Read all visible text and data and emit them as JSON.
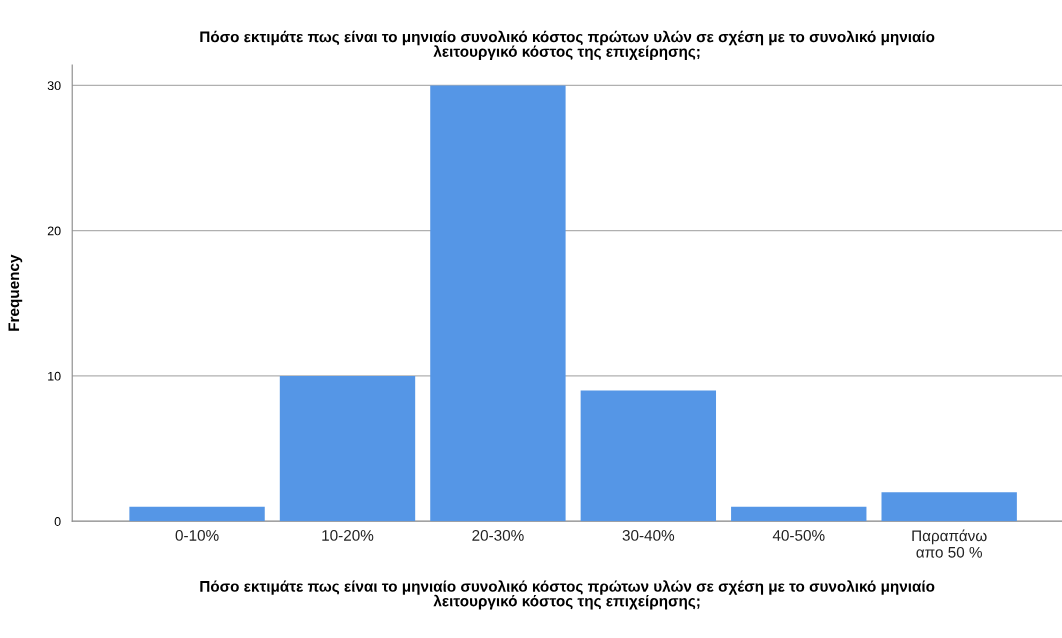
{
  "chart_data": {
    "type": "bar",
    "title": "Πόσο εκτιμάτε πως είναι το μηνιαίο συνολικό κόστος πρώτων υλών σε σχέση με το συνολικό μηνιαίο\nλειτουργικό κόστος της επιχείρησης;",
    "xlabel": "Πόσο εκτιμάτε πως είναι το μηνιαίο συνολικό κόστος πρώτων υλών σε σχέση με το συνολικό μηνιαίο\nλειτουργικό κόστος της επιχείρησης;",
    "ylabel": "Frequency",
    "categories": [
      "0-10%",
      "10-20%",
      "20-30%",
      "30-40%",
      "40-50%",
      "Παραπάνω\nαπο 50 %"
    ],
    "values": [
      1,
      10,
      30,
      9,
      1,
      2
    ],
    "color": "#5596e6",
    "ylim": [
      0,
      31.4
    ],
    "yticks": [
      0,
      10,
      20,
      30
    ],
    "grid": "y"
  }
}
